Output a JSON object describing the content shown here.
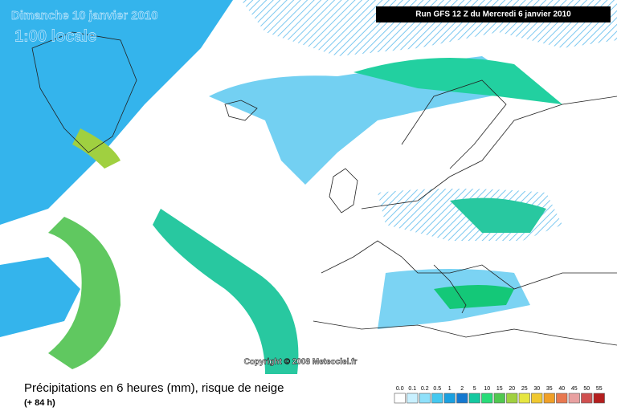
{
  "header": {
    "date": "Dimanche 10 janvier 2010",
    "time": "1:00 locale",
    "run": "Run GFS 12 Z du Mercredi 6 janvier 2010"
  },
  "copyright": "Copyright © 2008 Meteociel.fr",
  "footer": {
    "title": "Précipitations en 6 heures (mm), risque de neige",
    "lead": "(+ 84 h)"
  },
  "legend": {
    "values": [
      {
        "value": 0,
        "label": "0.0"
      },
      0.1,
      0.2,
      0.5,
      1,
      2,
      5,
      10,
      15,
      20,
      25,
      30,
      35,
      40,
      45,
      50,
      55
    ],
    "colors": [
      "#ffffff",
      "#c8f0ff",
      "#8ee0fa",
      "#44c8f0",
      "#1aa0e0",
      "#1478d0",
      "#14c8a0",
      "#28dc78",
      "#50c850",
      "#a0d040",
      "#e6e640",
      "#f0c830",
      "#f0a028",
      "#e87850",
      "#e8a0a0",
      "#d05050",
      "#b41e1e"
    ]
  }
}
